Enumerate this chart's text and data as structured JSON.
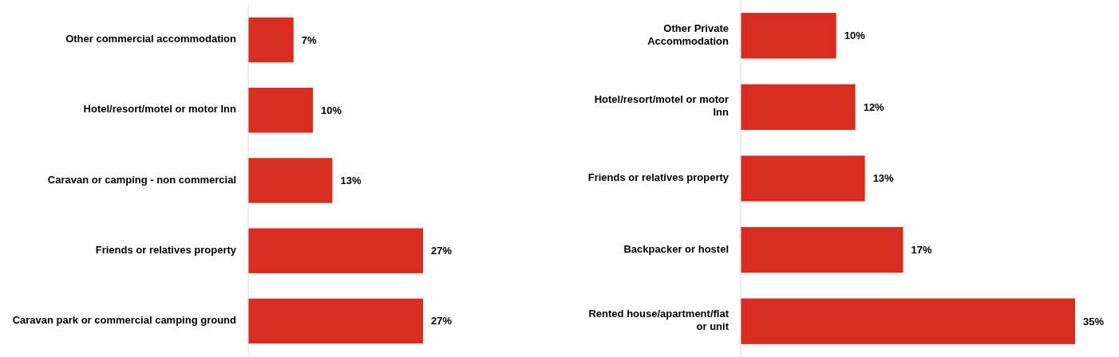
{
  "chart_data": [
    {
      "type": "bar",
      "orientation": "horizontal",
      "categories": [
        "Other commercial accommodation",
        "Hotel/resort/motel or motor Inn",
        "Caravan or camping - non commercial",
        "Friends or relatives property",
        "Caravan park or commercial camping ground"
      ],
      "values": [
        7,
        10,
        13,
        27,
        27
      ],
      "value_labels": [
        "7%",
        "10%",
        "13%",
        "27%",
        "27%"
      ],
      "color": "#d82e22",
      "grid": false
    },
    {
      "type": "bar",
      "orientation": "horizontal",
      "categories": [
        "Other Private Accommodation",
        "Hotel/resort/motel or motor Inn",
        "Friends or relatives property",
        "Backpacker or hostel",
        "Rented house/apartment/flat or unit"
      ],
      "values": [
        10,
        12,
        13,
        17,
        35
      ],
      "value_labels": [
        "10%",
        "12%",
        "13%",
        "17%",
        "35%"
      ],
      "color": "#d82e22",
      "grid": false
    }
  ]
}
